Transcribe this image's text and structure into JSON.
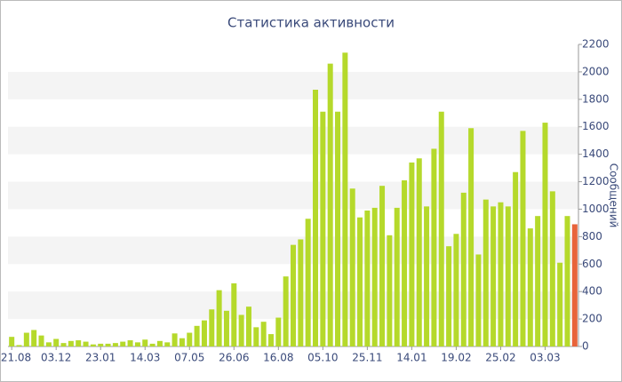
{
  "chart_data": {
    "type": "bar",
    "title": "Статистика активности",
    "y_label": "Сообщений",
    "categories": [
      "21.08",
      null,
      null,
      null,
      null,
      null,
      "03.12",
      null,
      null,
      null,
      null,
      null,
      "23.01",
      null,
      null,
      null,
      null,
      null,
      "14.03",
      null,
      null,
      null,
      null,
      null,
      "07.05",
      null,
      null,
      null,
      null,
      null,
      "26.06",
      null,
      null,
      null,
      null,
      null,
      "16.08",
      null,
      null,
      null,
      null,
      null,
      "05.10",
      null,
      null,
      null,
      null,
      null,
      "25.11",
      null,
      null,
      null,
      null,
      null,
      "14.01",
      null,
      null,
      null,
      null,
      null,
      "19.02",
      null,
      null,
      null,
      null,
      null,
      "25.02",
      null,
      null,
      null,
      null,
      null,
      "03.03",
      null,
      null,
      null,
      null
    ],
    "values": [
      70,
      10,
      100,
      120,
      80,
      30,
      55,
      25,
      40,
      45,
      35,
      15,
      20,
      20,
      25,
      35,
      45,
      30,
      50,
      20,
      40,
      30,
      95,
      60,
      100,
      150,
      190,
      270,
      410,
      260,
      460,
      230,
      290,
      140,
      180,
      90,
      210,
      510,
      740,
      780,
      930,
      1870,
      1710,
      2060,
      1710,
      2140,
      1150,
      940,
      990,
      1010,
      1170,
      810,
      1010,
      1210,
      1340,
      1370,
      1020,
      1440,
      1710,
      730,
      820,
      1120,
      1590,
      670,
      1070,
      1020,
      1050,
      1020,
      1270,
      1570,
      860,
      950,
      1630,
      1130,
      610,
      950,
      890
    ],
    "color": "#b5d92b",
    "highlight_color": "#e8643a",
    "ylim": [
      0,
      2200
    ],
    "yticks": [
      0,
      200,
      400,
      600,
      800,
      1000,
      1200,
      1400,
      1600,
      1800,
      2000,
      2200
    ],
    "grid": "bands"
  }
}
